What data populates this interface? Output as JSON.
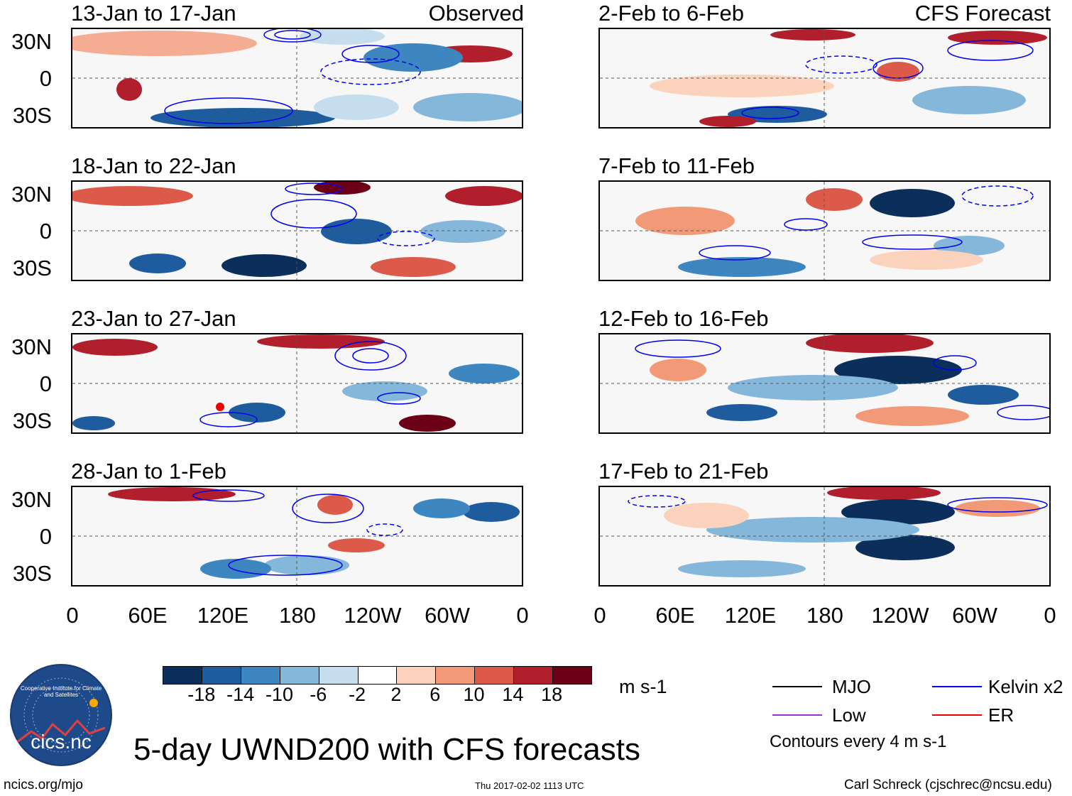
{
  "title": "5-day UWND200 with CFS forecasts",
  "left_panel_label": "Observed",
  "right_panel_label": "CFS Forecast",
  "left_panels": [
    "13-Jan to 17-Jan",
    "18-Jan to 22-Jan",
    "23-Jan to 27-Jan",
    "28-Jan to 1-Feb"
  ],
  "right_panels": [
    "2-Feb to 6-Feb",
    "7-Feb to 11-Feb",
    "12-Feb to 16-Feb",
    "17-Feb to 21-Feb"
  ],
  "lat_labels": [
    "30N",
    "0",
    "30S"
  ],
  "lon_labels": [
    "0",
    "60E",
    "120E",
    "180",
    "120W",
    "60W",
    "0"
  ],
  "colorbar": {
    "ticks": [
      "-18",
      "-14",
      "-10",
      "-6",
      "-2",
      "2",
      "6",
      "10",
      "14",
      "18"
    ],
    "colors": [
      "#0b2f5a",
      "#1e5c9e",
      "#3e86bf",
      "#84b7da",
      "#c6ddee",
      "#ffffff",
      "#fbd2bc",
      "#f29a78",
      "#dc5a4a",
      "#b11e2c",
      "#6c0016"
    ],
    "units": "m s-1"
  },
  "legend": {
    "items": [
      {
        "label": "MJO",
        "color": "#000000"
      },
      {
        "label": "Kelvin x2",
        "color": "#0000ee"
      },
      {
        "label": "Low",
        "color": "#9932cc"
      },
      {
        "label": "ER",
        "color": "#ee0000"
      }
    ],
    "note": "Contours every 4 m s-1"
  },
  "logo": {
    "text": "cics.nc",
    "ring_text": "Cooperative Institute for Climate and Satellites"
  },
  "footer": {
    "url": "ncics.org/mjo",
    "timestamp": "Thu 2017-02-02 1113 UTC",
    "credit": "Carl Schreck (cjschrec@ncsu.edu)"
  }
}
